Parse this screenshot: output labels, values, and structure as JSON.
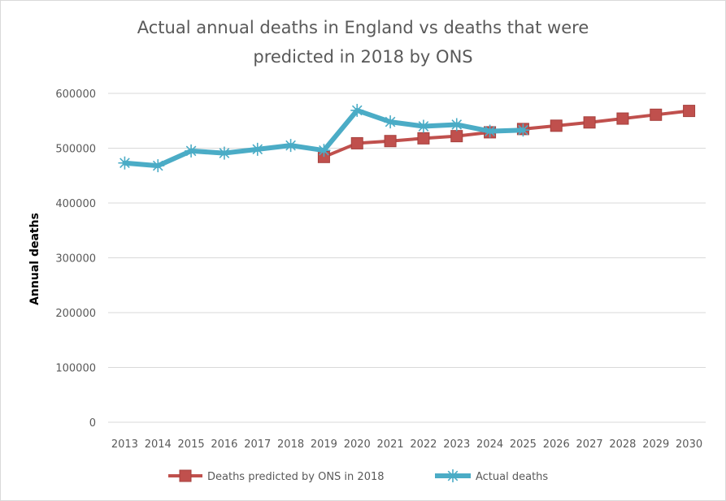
{
  "chart_data": {
    "type": "line",
    "title_lines": [
      "Actual annual deaths in England vs deaths that were",
      "predicted in 2018 by ONS"
    ],
    "xlabel": "",
    "ylabel": "Annual deaths",
    "categories": [
      "2013",
      "2014",
      "2015",
      "2016",
      "2017",
      "2018",
      "2019",
      "2020",
      "2021",
      "2022",
      "2023",
      "2024",
      "2025",
      "2026",
      "2027",
      "2028",
      "2029",
      "2030"
    ],
    "ylim": [
      0,
      600000
    ],
    "yticks": [
      "0",
      "100000",
      "200000",
      "300000",
      "400000",
      "500000",
      "600000"
    ],
    "grid": true,
    "legend_position": "bottom",
    "series": [
      {
        "name": "Deaths predicted by ONS in 2018",
        "color": "#c0504d",
        "marker": "square",
        "values": [
          null,
          null,
          null,
          null,
          null,
          null,
          484000,
          509000,
          513000,
          518000,
          522000,
          529000,
          535000,
          541000,
          547000,
          554000,
          561000,
          568000
        ]
      },
      {
        "name": "Actual deaths",
        "color": "#4bacc6",
        "marker": "asterisk",
        "values": [
          473000,
          468000,
          495000,
          491000,
          498000,
          505000,
          496000,
          569000,
          548000,
          540000,
          543000,
          531000,
          533000,
          null,
          null,
          null,
          null,
          null
        ]
      }
    ]
  }
}
